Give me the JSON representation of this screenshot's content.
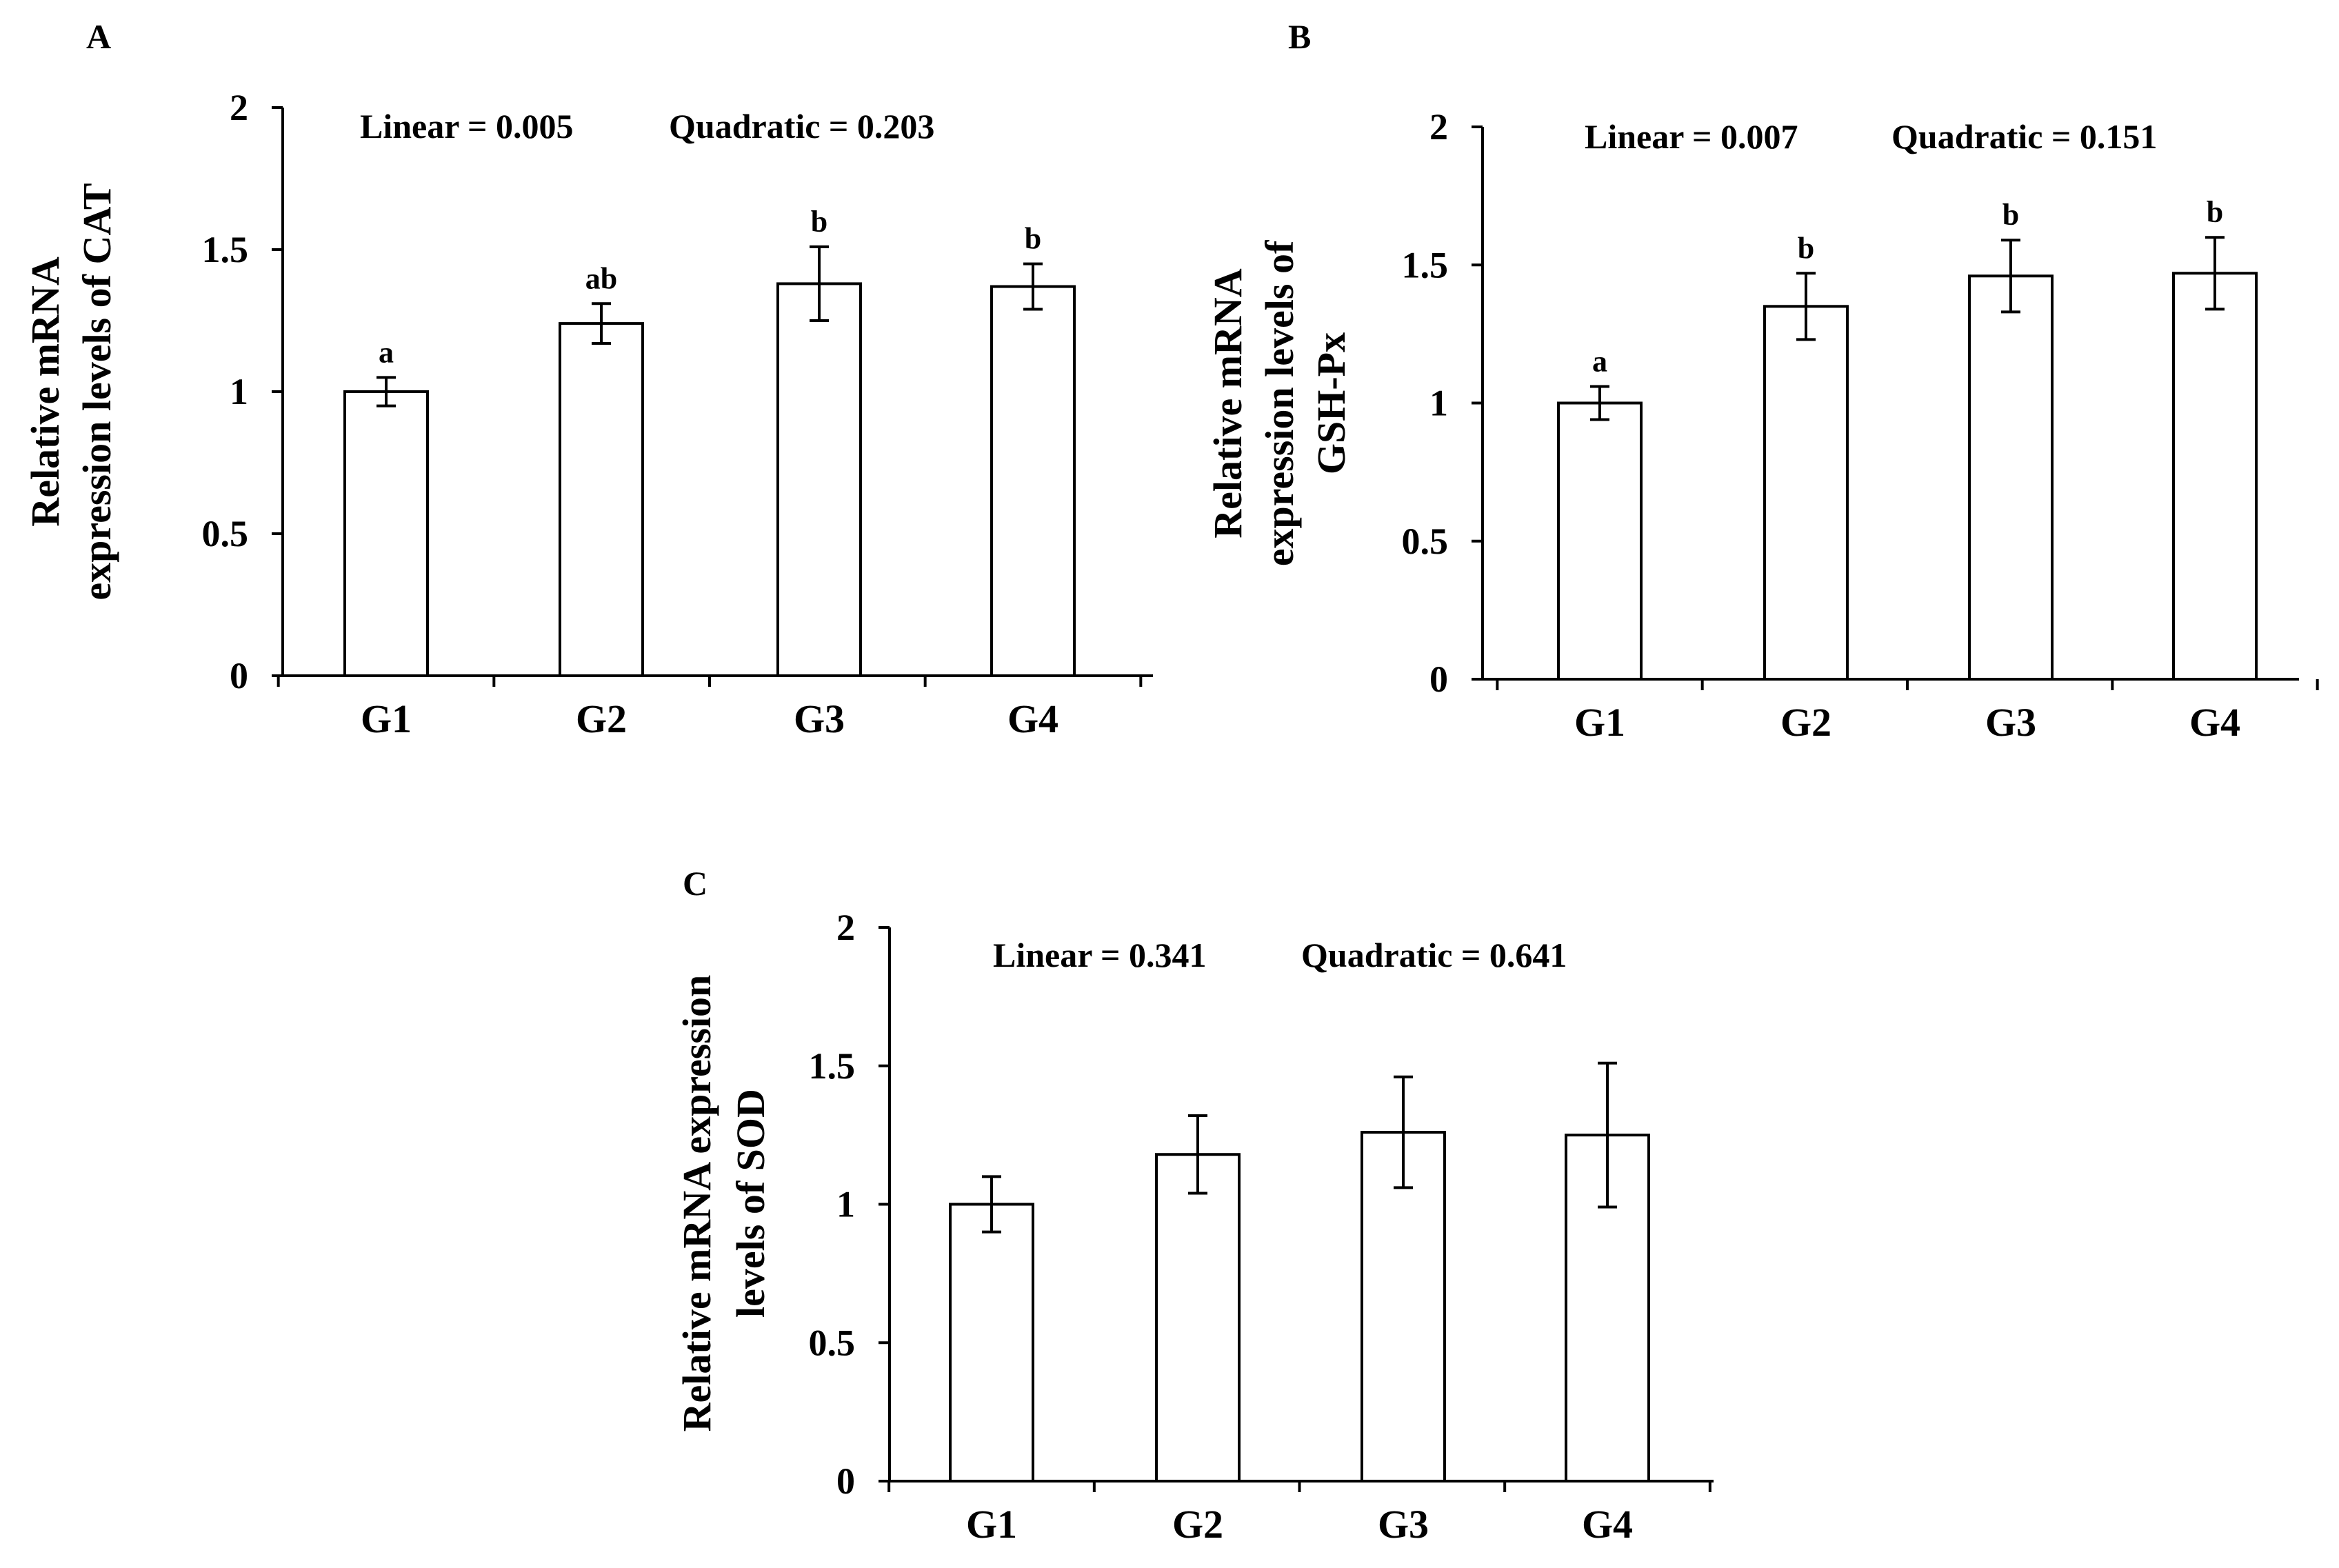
{
  "chart_data": [
    {
      "type": "bar",
      "panel": "A",
      "categories": [
        "G1",
        "G2",
        "G3",
        "G4"
      ],
      "values": [
        1.0,
        1.24,
        1.38,
        1.37
      ],
      "errors": [
        0.05,
        0.07,
        0.13,
        0.08
      ],
      "significance": [
        "a",
        "ab",
        "b",
        "b"
      ],
      "annotations": {
        "linear": "Linear = 0.005",
        "quadratic": "Quadratic = 0.203"
      },
      "ylabel_lines": [
        "Relative mRNA",
        "expression levels of CAT"
      ],
      "ylim": [
        0,
        2
      ],
      "yticks": [
        0,
        0.5,
        1,
        1.5,
        2
      ],
      "ytick_labels": [
        "0",
        "0.5",
        "1",
        "1.5",
        "2"
      ]
    },
    {
      "type": "bar",
      "panel": "B",
      "categories": [
        "G1",
        "G2",
        "G3",
        "G4"
      ],
      "values": [
        1.0,
        1.35,
        1.46,
        1.47
      ],
      "errors": [
        0.06,
        0.12,
        0.13,
        0.13
      ],
      "significance": [
        "a",
        "b",
        "b",
        "b"
      ],
      "annotations": {
        "linear": "Linear = 0.007",
        "quadratic": "Quadratic = 0.151"
      },
      "ylabel_lines": [
        "Relative mRNA",
        "expression levels of",
        "GSH-Px"
      ],
      "ylim": [
        0,
        2
      ],
      "yticks": [
        0,
        0.5,
        1,
        1.5,
        2
      ],
      "ytick_labels": [
        "0",
        "0.5",
        "1",
        "1.5",
        "2"
      ]
    },
    {
      "type": "bar",
      "panel": "C",
      "categories": [
        "G1",
        "G2",
        "G3",
        "G4"
      ],
      "values": [
        1.0,
        1.18,
        1.26,
        1.25
      ],
      "errors": [
        0.1,
        0.14,
        0.2,
        0.26
      ],
      "significance": [
        "",
        "",
        "",
        ""
      ],
      "annotations": {
        "linear": "Linear = 0.341",
        "quadratic": "Quadratic = 0.641"
      },
      "ylabel_lines": [
        "Relative mRNA expression",
        "levels of SOD"
      ],
      "ylim": [
        0,
        2
      ],
      "yticks": [
        0,
        0.5,
        1,
        1.5,
        2
      ],
      "ytick_labels": [
        "0",
        "0.5",
        "1",
        "1.5",
        "2"
      ]
    }
  ]
}
